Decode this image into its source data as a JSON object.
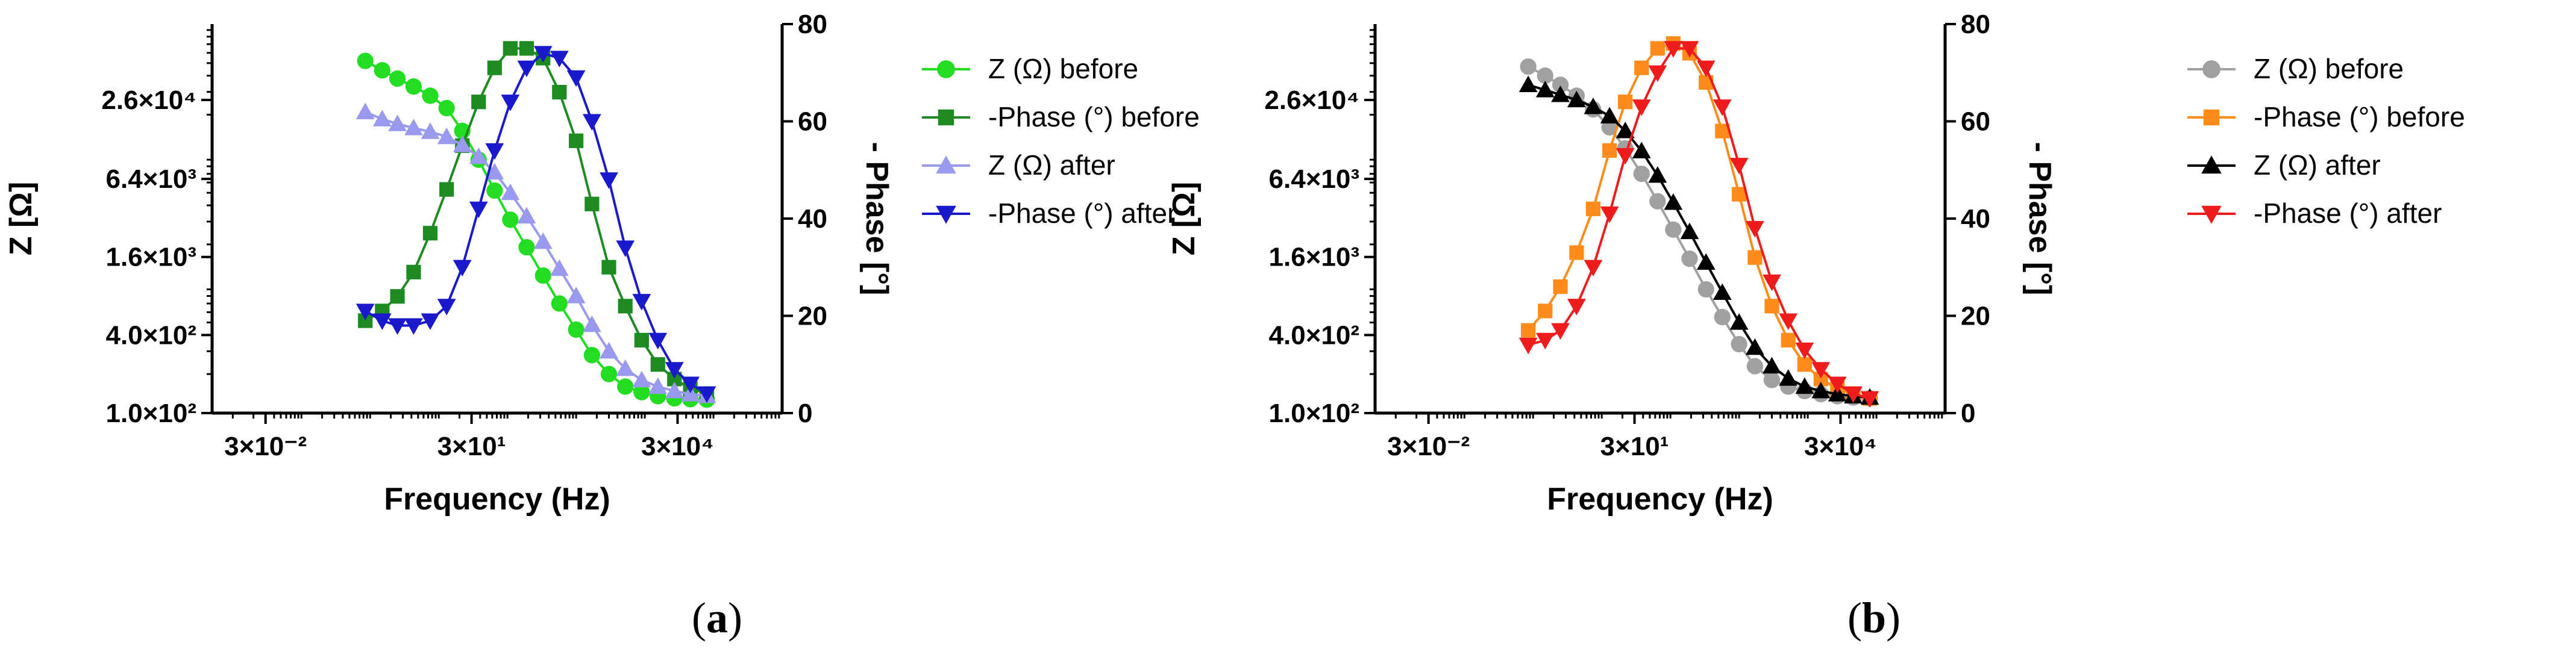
{
  "panels": [
    {
      "label": "(a)",
      "label_prefix": "(",
      "label_letter": "a",
      "label_suffix": ")"
    },
    {
      "label": "(b)",
      "label_prefix": "(",
      "label_letter": "b",
      "label_suffix": ")"
    }
  ],
  "chart_data": [
    {
      "type": "line",
      "title": "",
      "xlabel": "Frequency (Hz)",
      "ylabel": "Z [Ω]",
      "y2label": "- Phase [°]",
      "xscale": "log",
      "yscale": "log",
      "xlim": [
        0.5,
        500000
      ],
      "ylim": [
        100,
        100000
      ],
      "y2lim": [
        0,
        80
      ],
      "xticks": [
        {
          "value": 0.03,
          "label": "3×10⁻²"
        },
        {
          "value": 30,
          "label": "3×10¹"
        },
        {
          "value": 30000,
          "label": "3×10⁴"
        }
      ],
      "yticks": [
        {
          "value": 100,
          "label": "1.0×10²"
        },
        {
          "value": 400,
          "label": "4.0×10²"
        },
        {
          "value": 1600,
          "label": "1.6×10³"
        },
        {
          "value": 6400,
          "label": "6.4×10³"
        },
        {
          "value": 26000,
          "label": "2.6×10⁴"
        }
      ],
      "y2ticks": [
        0,
        20,
        40,
        60,
        80
      ],
      "grid": false,
      "legend_position": "right",
      "x": [
        0.85,
        1.5,
        2.5,
        4.3,
        7.5,
        13,
        22,
        38,
        65,
        110,
        190,
        330,
        570,
        1000,
        1700,
        3000,
        5200,
        9000,
        15500,
        27000,
        46000,
        80000
      ],
      "series": [
        {
          "name": "Z (Ω) before",
          "axis": "left",
          "marker": "circle",
          "color": "#22dd22",
          "values": [
            52000,
            44000,
            38000,
            33000,
            28000,
            22500,
            15000,
            9000,
            5200,
            3100,
            1900,
            1150,
            700,
            440,
            280,
            200,
            160,
            145,
            135,
            130,
            128,
            127
          ]
        },
        {
          "name": "-Phase (°) before",
          "axis": "right",
          "marker": "square",
          "color": "#1e8b22",
          "values": [
            19,
            21,
            24,
            29,
            37,
            46,
            55,
            64,
            71,
            75,
            75,
            73,
            66,
            56,
            43,
            30,
            22,
            15,
            10,
            7,
            5,
            4
          ]
        },
        {
          "name": "Z (Ω) after",
          "axis": "left",
          "marker": "triangle-up",
          "color": "#9999ee",
          "values": [
            21000,
            18500,
            17000,
            15800,
            14800,
            13500,
            11700,
            9500,
            7200,
            5000,
            3300,
            2100,
            1300,
            800,
            480,
            300,
            220,
            180,
            160,
            148,
            140,
            136
          ]
        },
        {
          "name": "-Phase (°) after",
          "axis": "right",
          "marker": "triangle-down",
          "color": "#1a1acc",
          "values": [
            21,
            19,
            18,
            18,
            19,
            22,
            30,
            42,
            54,
            64,
            71,
            74,
            73,
            69,
            60,
            48,
            34,
            23,
            15,
            9,
            6,
            4
          ]
        }
      ]
    },
    {
      "type": "line",
      "title": "",
      "xlabel": "Frequency (Hz)",
      "ylabel": "Z [Ω]",
      "y2label": "- Phase [°]",
      "xscale": "log",
      "yscale": "log",
      "xlim": [
        0.5,
        500000
      ],
      "ylim": [
        100,
        100000
      ],
      "y2lim": [
        0,
        80
      ],
      "xticks": [
        {
          "value": 0.03,
          "label": "3×10⁻²"
        },
        {
          "value": 30,
          "label": "3×10¹"
        },
        {
          "value": 30000,
          "label": "3×10⁴"
        }
      ],
      "yticks": [
        {
          "value": 100,
          "label": "1.0×10²"
        },
        {
          "value": 400,
          "label": "4.0×10²"
        },
        {
          "value": 1600,
          "label": "1.6×10³"
        },
        {
          "value": 6400,
          "label": "6.4×10³"
        },
        {
          "value": 26000,
          "label": "2.6×10⁴"
        }
      ],
      "y2ticks": [
        0,
        20,
        40,
        60,
        80
      ],
      "grid": false,
      "legend_position": "right",
      "x": [
        0.85,
        1.5,
        2.5,
        4.3,
        7.5,
        13,
        22,
        38,
        65,
        110,
        190,
        330,
        570,
        1000,
        1700,
        3000,
        5200,
        9000,
        15500,
        27000,
        46000,
        80000
      ],
      "series": [
        {
          "name": "Z (Ω) before",
          "axis": "left",
          "marker": "circle",
          "color": "#a0a0a0",
          "values": [
            47000,
            40000,
            34000,
            28000,
            22000,
            16000,
            11000,
            7000,
            4300,
            2600,
            1550,
            900,
            550,
            340,
            230,
            180,
            160,
            148,
            140,
            135,
            132,
            130
          ]
        },
        {
          "name": "-Phase (°) before",
          "axis": "right",
          "marker": "square",
          "color": "#ff8c1a",
          "values": [
            17,
            21,
            26,
            33,
            42,
            54,
            64,
            71,
            75,
            76,
            74,
            68,
            58,
            45,
            32,
            22,
            15,
            10,
            7,
            5,
            4,
            3
          ]
        },
        {
          "name": "Z (Ω) after",
          "axis": "left",
          "marker": "triangle-up",
          "color": "#000000",
          "values": [
            34000,
            31000,
            28500,
            26000,
            23000,
            19500,
            15000,
            10500,
            6800,
            4200,
            2500,
            1450,
            850,
            500,
            320,
            230,
            185,
            160,
            148,
            140,
            135,
            132
          ]
        },
        {
          "name": "-Phase (°) after",
          "axis": "right",
          "marker": "triangle-down",
          "color": "#ee1c1c",
          "values": [
            14,
            15,
            17,
            22,
            30,
            41,
            53,
            63,
            70,
            75,
            75,
            71,
            63,
            51,
            38,
            27,
            19,
            13,
            9,
            6,
            4,
            3
          ]
        }
      ]
    }
  ]
}
